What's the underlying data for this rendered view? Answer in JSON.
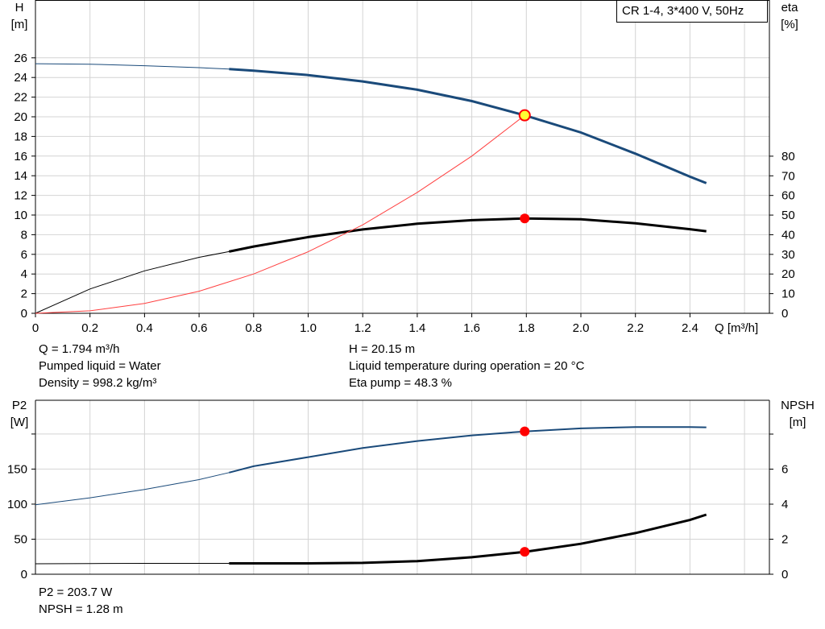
{
  "title_box": "CR 1-4, 3*400 V, 50Hz",
  "info_top_left": [
    "Q = 1.794 m³/h",
    "Pumped liquid = Water",
    "Density = 998.2 kg/m³"
  ],
  "info_top_right": [
    "H = 20.15 m",
    "Liquid temperature during operation = 20 °C",
    "Eta pump = 48.3 %"
  ],
  "info_bottom_left": [
    "P2 = 203.7 W",
    "NPSH = 1.28 m"
  ],
  "colors": {
    "head": "#1a4a7a",
    "eta": "#000000",
    "system": "#ff4040",
    "p2": "#1a4a7a",
    "npsh": "#000000",
    "grid": "#d4d4d4",
    "duty_point": "#ff0000",
    "duty_fill_yellow": "#ffff33"
  },
  "chart_data": [
    {
      "type": "line",
      "xlabel": "Q [m³/h]",
      "ylabel": "H\n[m]",
      "ylabel_right": "eta\n[%]",
      "xlim": [
        0,
        2.6
      ],
      "ylim": [
        0,
        26
      ],
      "ylim_right": [
        0,
        80
      ],
      "x_ticks": [
        "0",
        "0.2",
        "0.4",
        "0.6",
        "0.8",
        "1.0",
        "1.2",
        "1.4",
        "1.6",
        "1.8",
        "2.0",
        "2.2",
        "2.4"
      ],
      "y_ticks": [
        "0",
        "2",
        "4",
        "6",
        "8",
        "10",
        "12",
        "14",
        "16",
        "18",
        "20",
        "22",
        "24",
        "26"
      ],
      "y_ticks_right": [
        "0",
        "10",
        "20",
        "30",
        "40",
        "50",
        "60",
        "70",
        "80"
      ],
      "grid": true,
      "series": [
        {
          "key": "head",
          "axis": "left",
          "thin_until": 0.71,
          "x": [
            0,
            0.2,
            0.4,
            0.6,
            0.71,
            0.8,
            1.0,
            1.2,
            1.4,
            1.6,
            1.794,
            2.0,
            2.2,
            2.4,
            2.46
          ],
          "y": [
            25.4,
            25.35,
            25.2,
            25.0,
            24.85,
            24.7,
            24.25,
            23.6,
            22.75,
            21.6,
            20.15,
            18.4,
            16.25,
            13.9,
            13.25
          ]
        },
        {
          "key": "eta",
          "axis": "right",
          "thin_until": 0.71,
          "x": [
            0,
            0.2,
            0.4,
            0.6,
            0.71,
            0.8,
            1.0,
            1.2,
            1.4,
            1.6,
            1.794,
            2.0,
            2.2,
            2.4,
            2.46
          ],
          "y": [
            0,
            12.4,
            21.6,
            28.5,
            31.4,
            34,
            38.8,
            42.7,
            45.6,
            47.4,
            48.3,
            47.9,
            45.8,
            42.8,
            41.8
          ]
        },
        {
          "key": "system",
          "axis": "left",
          "thin_until": 2.46,
          "x": [
            0,
            0.2,
            0.4,
            0.6,
            0.8,
            1.0,
            1.2,
            1.4,
            1.6,
            1.794
          ],
          "y": [
            0,
            0.25,
            1.0,
            2.25,
            4.0,
            6.26,
            9.0,
            12.3,
            16.0,
            20.15
          ]
        }
      ],
      "duty_points": [
        {
          "axis": "left",
          "x": 1.794,
          "y": 20.15,
          "style": "yellow"
        },
        {
          "axis": "right",
          "x": 1.794,
          "y": 48.3,
          "style": "red"
        }
      ]
    },
    {
      "type": "line",
      "ylabel": "P2\n[W]",
      "ylabel_right": "NPSH\n[m]",
      "xlim": [
        0,
        2.6
      ],
      "ylim": [
        0,
        200
      ],
      "ylim_right": [
        0,
        8
      ],
      "y_ticks": [
        "0",
        "50",
        "100",
        "150"
      ],
      "y_ticks_right": [
        "0",
        "2",
        "4",
        "6"
      ],
      "grid": true,
      "series": [
        {
          "key": "p2",
          "axis": "left",
          "thin_until": 0.71,
          "x": [
            0,
            0.2,
            0.4,
            0.6,
            0.71,
            0.8,
            1.0,
            1.2,
            1.4,
            1.6,
            1.794,
            2.0,
            2.2,
            2.4,
            2.46
          ],
          "y": [
            99,
            109,
            121,
            135,
            145,
            154,
            167,
            180,
            190,
            198,
            203.7,
            208,
            210,
            210,
            209.5
          ]
        },
        {
          "key": "npsh",
          "axis": "right",
          "thin_until": 0.71,
          "x": [
            0,
            0.2,
            0.4,
            0.6,
            0.71,
            0.8,
            1.0,
            1.2,
            1.4,
            1.6,
            1.794,
            2.0,
            2.2,
            2.4,
            2.46
          ],
          "y": [
            0.6,
            0.61,
            0.62,
            0.62,
            0.62,
            0.62,
            0.62,
            0.65,
            0.75,
            0.97,
            1.28,
            1.74,
            2.35,
            3.1,
            3.4
          ]
        }
      ],
      "duty_points": [
        {
          "axis": "left",
          "x": 1.794,
          "y": 203.7,
          "style": "red"
        },
        {
          "axis": "right",
          "x": 1.794,
          "y": 1.28,
          "style": "red"
        }
      ]
    }
  ]
}
